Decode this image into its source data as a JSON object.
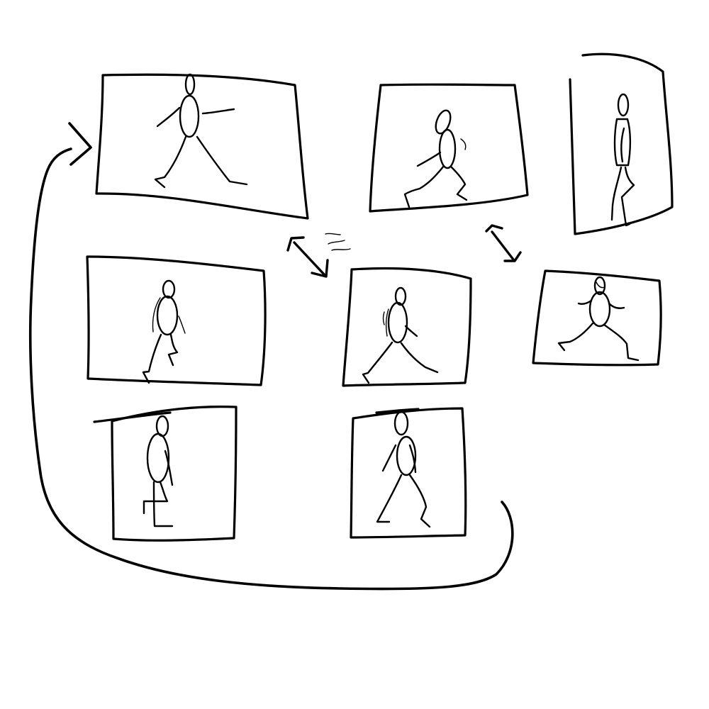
{
  "sketch": {
    "background": "#ffffff",
    "ink_color": "#000000",
    "frames": [
      {
        "id": "frame-1",
        "pose": "walking-stride"
      },
      {
        "id": "frame-2",
        "pose": "crouched-lunge"
      },
      {
        "id": "frame-3",
        "pose": "standing-lifted-knee"
      },
      {
        "id": "frame-4",
        "pose": "walking-step"
      },
      {
        "id": "frame-5",
        "pose": "walking-stride-arms-swinging"
      },
      {
        "id": "frame-6",
        "pose": "running-lunge"
      },
      {
        "id": "frame-7",
        "pose": "standing-bent-leg"
      },
      {
        "id": "frame-8",
        "pose": "walking-lunge"
      }
    ],
    "connectors": [
      "double-arrow",
      "double-arrow",
      "loop-arrow"
    ]
  }
}
